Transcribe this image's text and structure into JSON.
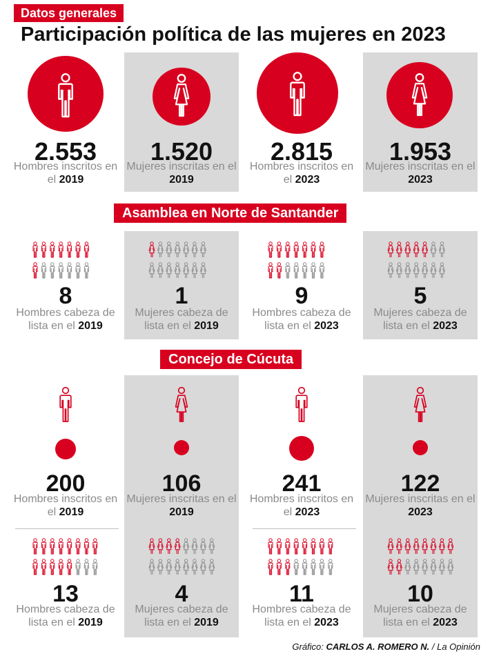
{
  "header": {
    "tag": "Datos generales",
    "title": "Participación política de las mujeres en 2023"
  },
  "section_labels": {
    "asamblea": "Asamblea en Norte de Santander",
    "concejo": "Concejo de Cúcuta"
  },
  "datos_generales": [
    {
      "figure": "man-icon",
      "value": "2.553",
      "desc": "Hombres inscritos en el",
      "year": "2019",
      "circle_share": 1.0
    },
    {
      "figure": "woman-icon",
      "value": "1.520",
      "desc": "Mujeres inscritas en el",
      "year": "2019",
      "circle_share": 0.6
    },
    {
      "figure": "man-icon",
      "value": "2.815",
      "desc": "Hombres inscritos en el",
      "year": "2023",
      "circle_share": 1.0
    },
    {
      "figure": "woman-icon",
      "value": "1.953",
      "desc": "Mujeres inscritas en el",
      "year": "2023",
      "circle_share": 0.7
    }
  ],
  "asamblea": [
    {
      "figure": "man-icon",
      "value": "8",
      "highlighted": 8,
      "total": 14,
      "desc": "Hombres cabeza de lista en el",
      "year": "2019"
    },
    {
      "figure": "woman-icon",
      "value": "1",
      "highlighted": 1,
      "total": 14,
      "desc": "Mujeres cabeza de lista en el",
      "year": "2019"
    },
    {
      "figure": "man-icon",
      "value": "9",
      "highlighted": 9,
      "total": 14,
      "desc": "Hombres cabeza de lista en el",
      "year": "2023"
    },
    {
      "figure": "woman-icon",
      "value": "5",
      "highlighted": 5,
      "total": 14,
      "desc": "Mujeres cabeza de lista en el",
      "year": "2023"
    }
  ],
  "concejo_inscritos": [
    {
      "figure": "man-icon",
      "value": "200",
      "desc": "Hombres inscritos en el",
      "year": "2019",
      "circle_share": 0.83
    },
    {
      "figure": "woman-icon",
      "value": "106",
      "desc": "Mujeres inscritas en el",
      "year": "2019",
      "circle_share": 0.44
    },
    {
      "figure": "man-icon",
      "value": "241",
      "desc": "Hombres inscritos en el",
      "year": "2023",
      "circle_share": 1.0
    },
    {
      "figure": "woman-icon",
      "value": "122",
      "desc": "Mujeres inscritas en el",
      "year": "2023",
      "circle_share": 0.51
    }
  ],
  "concejo_cabezas": [
    {
      "figure": "man-icon",
      "value": "13",
      "highlighted": 13,
      "total": 16,
      "desc": "Hombres cabeza de lista en el",
      "year": "2019"
    },
    {
      "figure": "woman-icon",
      "value": "4",
      "highlighted": 4,
      "total": 16,
      "desc": "Mujeres cabeza de lista en el",
      "year": "2019"
    },
    {
      "figure": "man-icon",
      "value": "11",
      "highlighted": 11,
      "total": 16,
      "desc": "Hombres cabeza de lista en el",
      "year": "2023"
    },
    {
      "figure": "woman-icon",
      "value": "10",
      "highlighted": 10,
      "total": 16,
      "desc": "Mujeres cabeza de lista en el",
      "year": "2023"
    }
  ],
  "credit": {
    "prefix": "Gráfico:",
    "author": "CARLOS A. ROMERO N.",
    "outlet": "/ La Opinión"
  },
  "colors": {
    "accent": "#d8001f",
    "panel": "#d9d9d9",
    "muted_icon": "#8c8c8c",
    "desc_text": "#8a8a8a"
  }
}
